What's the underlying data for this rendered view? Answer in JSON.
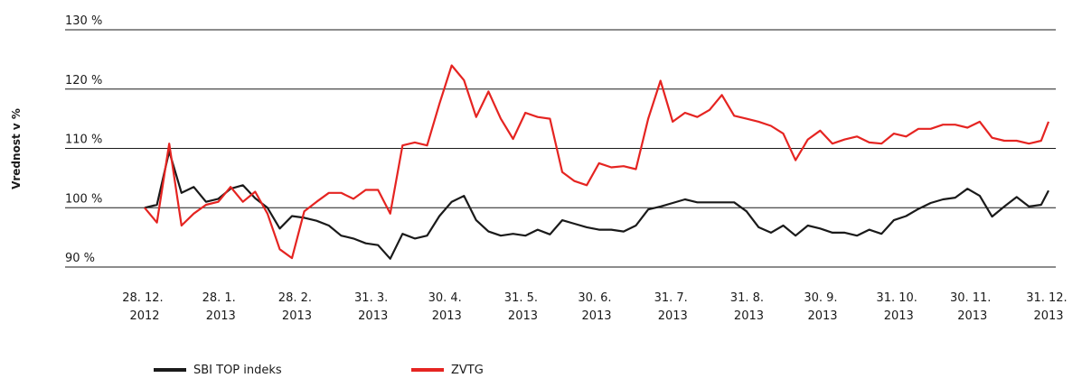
{
  "chart_data": {
    "type": "line",
    "y_label": "Vrednost v %",
    "x": [
      "2012-12-28",
      "2013-01-02",
      "2013-01-07",
      "2013-01-12",
      "2013-01-17",
      "2013-01-22",
      "2013-01-27",
      "2013-02-01",
      "2013-02-06",
      "2013-02-11",
      "2013-02-16",
      "2013-02-21",
      "2013-02-26",
      "2013-03-03",
      "2013-03-08",
      "2013-03-13",
      "2013-03-18",
      "2013-03-23",
      "2013-03-28",
      "2013-04-02",
      "2013-04-07",
      "2013-04-12",
      "2013-04-17",
      "2013-04-22",
      "2013-04-27",
      "2013-05-02",
      "2013-05-07",
      "2013-05-12",
      "2013-05-17",
      "2013-05-22",
      "2013-05-27",
      "2013-06-01",
      "2013-06-06",
      "2013-06-11",
      "2013-06-16",
      "2013-06-21",
      "2013-06-26",
      "2013-07-01",
      "2013-07-06",
      "2013-07-11",
      "2013-07-16",
      "2013-07-21",
      "2013-07-26",
      "2013-07-31",
      "2013-08-05",
      "2013-08-10",
      "2013-08-15",
      "2013-08-20",
      "2013-08-25",
      "2013-08-30",
      "2013-09-04",
      "2013-09-09",
      "2013-09-14",
      "2013-09-19",
      "2013-09-24",
      "2013-09-29",
      "2013-10-04",
      "2013-10-09",
      "2013-10-14",
      "2013-10-19",
      "2013-10-24",
      "2013-10-29",
      "2013-11-03",
      "2013-11-08",
      "2013-11-13",
      "2013-11-18",
      "2013-11-23",
      "2013-11-28",
      "2013-12-03",
      "2013-12-08",
      "2013-12-13",
      "2013-12-18",
      "2013-12-23",
      "2013-12-28",
      "2013-12-31"
    ],
    "series": [
      {
        "name": "SBI TOP indeks",
        "color": "#1a1a1a",
        "values": [
          100,
          100.5,
          109.5,
          102.5,
          103.5,
          101,
          101.5,
          103.2,
          103.8,
          101.6,
          100,
          96.5,
          98.6,
          98.3,
          97.8,
          97,
          95.3,
          94.8,
          94,
          93.7,
          91.4,
          95.6,
          94.8,
          95.3,
          98.6,
          101,
          102,
          97.9,
          96,
          95.3,
          95.6,
          95.3,
          96.3,
          95.5,
          97.9,
          97.3,
          96.7,
          96.3,
          96.3,
          96,
          97,
          99.7,
          100.2,
          100.8,
          101.4,
          100.9,
          100.9,
          100.9,
          100.9,
          99.4,
          96.7,
          95.8,
          97,
          95.3,
          97,
          96.5,
          95.8,
          95.8,
          95.3,
          96.3,
          95.6,
          97.9,
          98.6,
          99.8,
          100.8,
          101.4,
          101.7,
          103.2,
          102,
          98.5,
          100.2,
          101.8,
          100.2,
          100.5,
          102.9
        ]
      },
      {
        "name": "ZVTG",
        "color": "#e52421",
        "values": [
          100,
          97.5,
          110.8,
          97,
          99,
          100.5,
          101,
          103.5,
          101,
          102.7,
          99,
          93,
          91.5,
          99.4,
          101,
          102.5,
          102.5,
          101.5,
          103,
          103,
          99,
          110.5,
          111,
          110.5,
          117.5,
          124,
          121.5,
          115.3,
          119.6,
          115,
          111.6,
          116,
          115.3,
          115,
          106,
          104.5,
          103.8,
          107.5,
          106.8,
          107,
          106.5,
          115,
          121.4,
          114.5,
          116,
          115.3,
          116.5,
          119,
          115.5,
          115,
          114.5,
          113.8,
          112.5,
          108,
          111.5,
          113,
          110.8,
          111.5,
          112,
          111,
          110.8,
          112.5,
          112,
          113.3,
          113.3,
          114,
          114,
          113.5,
          114.5,
          111.8,
          111.3,
          111.3,
          110.8,
          111.3,
          114.5
        ]
      }
    ],
    "xlim": [
      "2012-12-28",
      "2013-12-31"
    ],
    "xticks": [
      {
        "value": "2012-12-28",
        "label": "28. 12. 2012"
      },
      {
        "value": "2013-01-28",
        "label": "28. 1. 2013"
      },
      {
        "value": "2013-02-28",
        "label": "28. 2. 2013"
      },
      {
        "value": "2013-03-31",
        "label": "31. 3. 2013"
      },
      {
        "value": "2013-04-30",
        "label": "30. 4. 2013"
      },
      {
        "value": "2013-05-31",
        "label": "31. 5. 2013"
      },
      {
        "value": "2013-06-30",
        "label": "30. 6. 2013"
      },
      {
        "value": "2013-07-31",
        "label": "31. 7. 2013"
      },
      {
        "value": "2013-08-31",
        "label": "31. 8. 2013"
      },
      {
        "value": "2013-09-30",
        "label": "30. 9. 2013"
      },
      {
        "value": "2013-10-31",
        "label": "31. 10. 2013"
      },
      {
        "value": "2013-11-30",
        "label": "30. 11. 2013"
      },
      {
        "value": "2013-12-31",
        "label": "31. 12. 2013"
      }
    ],
    "ylim": [
      90,
      130
    ],
    "yticks": [
      {
        "value": 90,
        "label": "90 %"
      },
      {
        "value": 100,
        "label": "100 %"
      },
      {
        "value": 110,
        "label": "110 %"
      },
      {
        "value": 120,
        "label": "120 %"
      },
      {
        "value": 130,
        "label": "130 %"
      }
    ],
    "grid": true,
    "legend": "bottom"
  }
}
